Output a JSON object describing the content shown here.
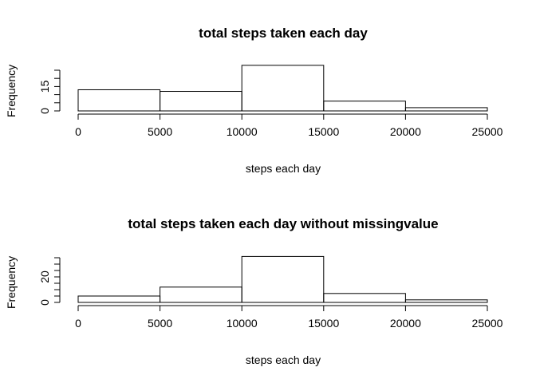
{
  "chart_data": [
    {
      "type": "bar",
      "title": "total steps taken each day",
      "xlabel": "steps each day",
      "ylabel": "Frequency",
      "bins": [
        [
          0,
          5000
        ],
        [
          5000,
          10000
        ],
        [
          10000,
          15000
        ],
        [
          15000,
          20000
        ],
        [
          20000,
          25000
        ]
      ],
      "values": [
        13,
        12,
        28,
        6,
        2
      ],
      "xlim": [
        0,
        25000
      ],
      "ylim": [
        0,
        28
      ],
      "x_ticks": [
        "0",
        "5000",
        "10000",
        "15000",
        "20000",
        "25000"
      ],
      "x_tick_values": [
        0,
        5000,
        10000,
        15000,
        20000,
        25000
      ],
      "y_tick_values": [
        0,
        5,
        10,
        15,
        20,
        25
      ],
      "y_tick_labels": {
        "0": "0",
        "15": "15"
      },
      "grid": false
    },
    {
      "type": "bar",
      "title": "total steps taken each day without missingvalue",
      "xlabel": "steps each day",
      "ylabel": "Frequency",
      "bins": [
        [
          0,
          5000
        ],
        [
          5000,
          10000
        ],
        [
          10000,
          15000
        ],
        [
          15000,
          20000
        ],
        [
          20000,
          25000
        ]
      ],
      "values": [
        5,
        12,
        36,
        7,
        2
      ],
      "xlim": [
        0,
        25000
      ],
      "ylim": [
        0,
        36
      ],
      "x_ticks": [
        "0",
        "5000",
        "10000",
        "15000",
        "20000",
        "25000"
      ],
      "x_tick_values": [
        0,
        5000,
        10000,
        15000,
        20000,
        25000
      ],
      "y_tick_values": [
        0,
        5,
        10,
        15,
        20,
        25,
        30,
        35
      ],
      "y_tick_labels": {
        "0": "0",
        "20": "20"
      },
      "grid": false
    }
  ]
}
